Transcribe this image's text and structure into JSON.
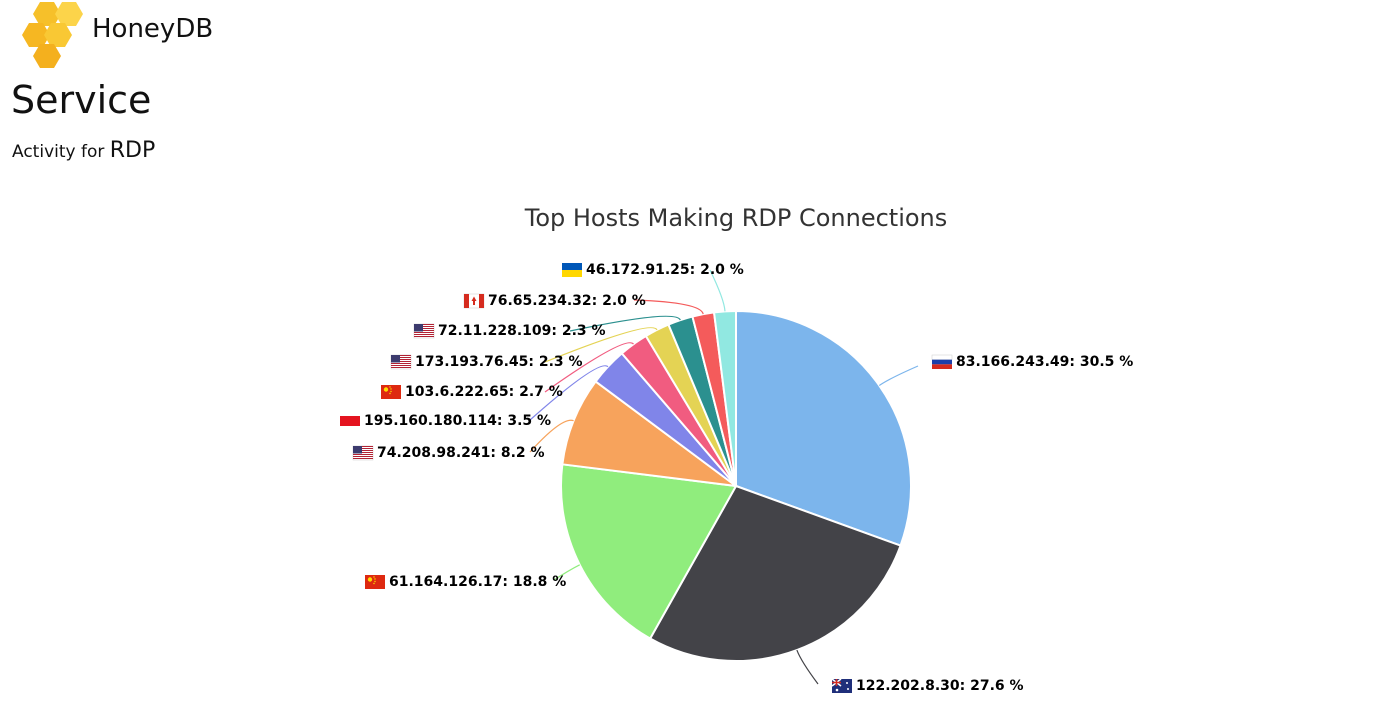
{
  "header": {
    "brand_name": "HoneyDB",
    "brand_color": "#F6C02A"
  },
  "page": {
    "title": "Service",
    "subtitle_prefix": "Activity for",
    "service_name": "RDP"
  },
  "chart_data": {
    "type": "pie",
    "title": "Top Hosts Making RDP Connections",
    "slices": [
      {
        "label": "83.166.243.49",
        "value": 30.5,
        "display": "83.166.243.49: 30.5 %",
        "color": "#7CB5EC",
        "flag": "russia-flag-icon"
      },
      {
        "label": "122.202.8.30",
        "value": 27.6,
        "display": "122.202.8.30: 27.6 %",
        "color": "#434348",
        "flag": "australia-flag-icon"
      },
      {
        "label": "61.164.126.17",
        "value": 18.8,
        "display": "61.164.126.17: 18.8 %",
        "color": "#90ED7D",
        "flag": "china-flag-icon"
      },
      {
        "label": "74.208.98.241",
        "value": 8.2,
        "display": "74.208.98.241: 8.2 %",
        "color": "#F7A35C",
        "flag": "usa-flag-icon"
      },
      {
        "label": "195.160.180.114",
        "value": 3.5,
        "display": "195.160.180.114: 3.5 %",
        "color": "#8085E9",
        "flag": "red-flag-icon"
      },
      {
        "label": "103.6.222.65",
        "value": 2.7,
        "display": "103.6.222.65: 2.7 %",
        "color": "#F15C80",
        "flag": "china-flag-icon"
      },
      {
        "label": "173.193.76.45",
        "value": 2.3,
        "display": "173.193.76.45: 2.3 %",
        "color": "#E4D354",
        "flag": "usa-flag-icon"
      },
      {
        "label": "72.11.228.109",
        "value": 2.3,
        "display": "72.11.228.109: 2.3 %",
        "color": "#2B908F",
        "flag": "usa-flag-icon"
      },
      {
        "label": "76.65.234.32",
        "value": 2.0,
        "display": "76.65.234.32: 2.0 %",
        "color": "#F45B5B",
        "flag": "canada-flag-icon"
      },
      {
        "label": "46.172.91.25",
        "value": 2.0,
        "display": "46.172.91.25: 2.0 %",
        "color": "#91E8E1",
        "flag": "ukraine-flag-icon"
      }
    ]
  }
}
